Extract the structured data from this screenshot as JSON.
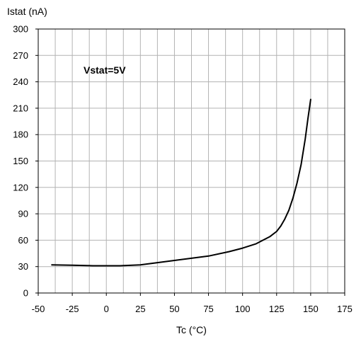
{
  "chart_data": {
    "type": "line",
    "ylabel": "Istat (nA)",
    "xlabel": "Tc (°C)",
    "annotation": "Vstat=5V",
    "xlim": [
      -50,
      175
    ],
    "ylim": [
      0,
      300
    ],
    "x_ticks": [
      -50,
      -25,
      0,
      25,
      50,
      75,
      100,
      125,
      150,
      175
    ],
    "x_tick_labels": [
      "-50",
      "-25",
      "0",
      "25",
      "50",
      "75",
      "100",
      "125",
      "150",
      "175"
    ],
    "y_ticks": [
      0,
      30,
      60,
      90,
      120,
      150,
      180,
      210,
      240,
      270,
      300
    ],
    "y_tick_labels": [
      "0",
      "30",
      "60",
      "90",
      "120",
      "150",
      "180",
      "210",
      "240",
      "270",
      "300"
    ],
    "x_minor_step": 12.5,
    "grid": true,
    "series": [
      {
        "x": [
          -40,
          -25,
          -10,
          0,
          10,
          25,
          40,
          50,
          60,
          75,
          90,
          100,
          110,
          115,
          120,
          125,
          128,
          131,
          134,
          137,
          140,
          143,
          146,
          148,
          150
        ],
        "y": [
          32,
          31.5,
          31,
          31,
          31,
          32,
          35,
          37,
          39,
          42,
          47,
          51,
          56,
          60,
          64,
          70,
          76,
          84,
          94,
          108,
          125,
          146,
          175,
          198,
          220
        ]
      }
    ]
  }
}
